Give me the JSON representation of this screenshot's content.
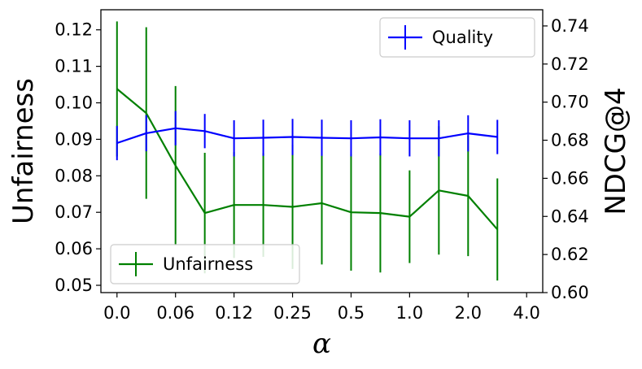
{
  "chart_data": {
    "type": "line",
    "xlabel": "α",
    "ylabel_left": "Unfairness",
    "ylabel_right": "NDCG@4",
    "x_tick_labels": [
      "0.0",
      "0.06",
      "0.12",
      "0.25",
      "0.5",
      "1.0",
      "2.0",
      "4.0"
    ],
    "x_points": [
      0,
      1,
      2,
      3,
      4,
      5,
      6,
      7,
      8,
      9,
      10,
      11,
      12,
      13,
      14
    ],
    "x_tick_positions": [
      0,
      2,
      4,
      6,
      8,
      10,
      12,
      14
    ],
    "x_range": [
      -0.55,
      14.55
    ],
    "left_ylim": [
      0.048,
      0.1255
    ],
    "left_ticks": [
      0.05,
      0.06,
      0.07,
      0.08,
      0.09,
      0.1,
      0.11,
      0.12
    ],
    "left_tick_labels": [
      "0.05",
      "0.06",
      "0.07",
      "0.08",
      "0.09",
      "0.10",
      "0.11",
      "0.12"
    ],
    "right_ylim": [
      0.6,
      0.7485
    ],
    "right_ticks": [
      0.6,
      0.62,
      0.64,
      0.66,
      0.68,
      0.7,
      0.72,
      0.74
    ],
    "right_tick_labels": [
      "0.60",
      "0.62",
      "0.64",
      "0.66",
      "0.68",
      "0.70",
      "0.72",
      "0.74"
    ],
    "series": [
      {
        "name": "Unfairness",
        "axis": "left",
        "color": "#008000",
        "values": [
          0.1038,
          0.0972,
          0.0828,
          0.0698,
          0.072,
          0.072,
          0.0715,
          0.0725,
          0.07,
          0.0698,
          0.0688,
          0.076,
          0.0745,
          0.0653,
          null
        ],
        "errors": [
          0.0185,
          0.0235,
          0.0218,
          0.0165,
          0.0145,
          0.0142,
          0.017,
          0.0168,
          0.016,
          0.0163,
          0.0127,
          0.0176,
          0.0165,
          0.014,
          null
        ]
      },
      {
        "name": "Quality",
        "axis": "right",
        "color": "#0000ff",
        "values": [
          0.6785,
          0.6837,
          0.6863,
          0.6848,
          0.681,
          0.6813,
          0.6817,
          0.6813,
          0.681,
          0.6815,
          0.681,
          0.681,
          0.6836,
          0.6817,
          null
        ],
        "errors": [
          0.009,
          0.0095,
          0.009,
          0.009,
          0.0095,
          0.0095,
          0.0095,
          0.0095,
          0.0095,
          0.0095,
          0.0095,
          0.0095,
          0.0095,
          0.009,
          null
        ]
      }
    ],
    "legend": [
      {
        "label": "Quality",
        "placement": "upper-right",
        "color": "#0000ff"
      },
      {
        "label": "Unfairness",
        "placement": "lower-left",
        "color": "#008000"
      }
    ]
  }
}
